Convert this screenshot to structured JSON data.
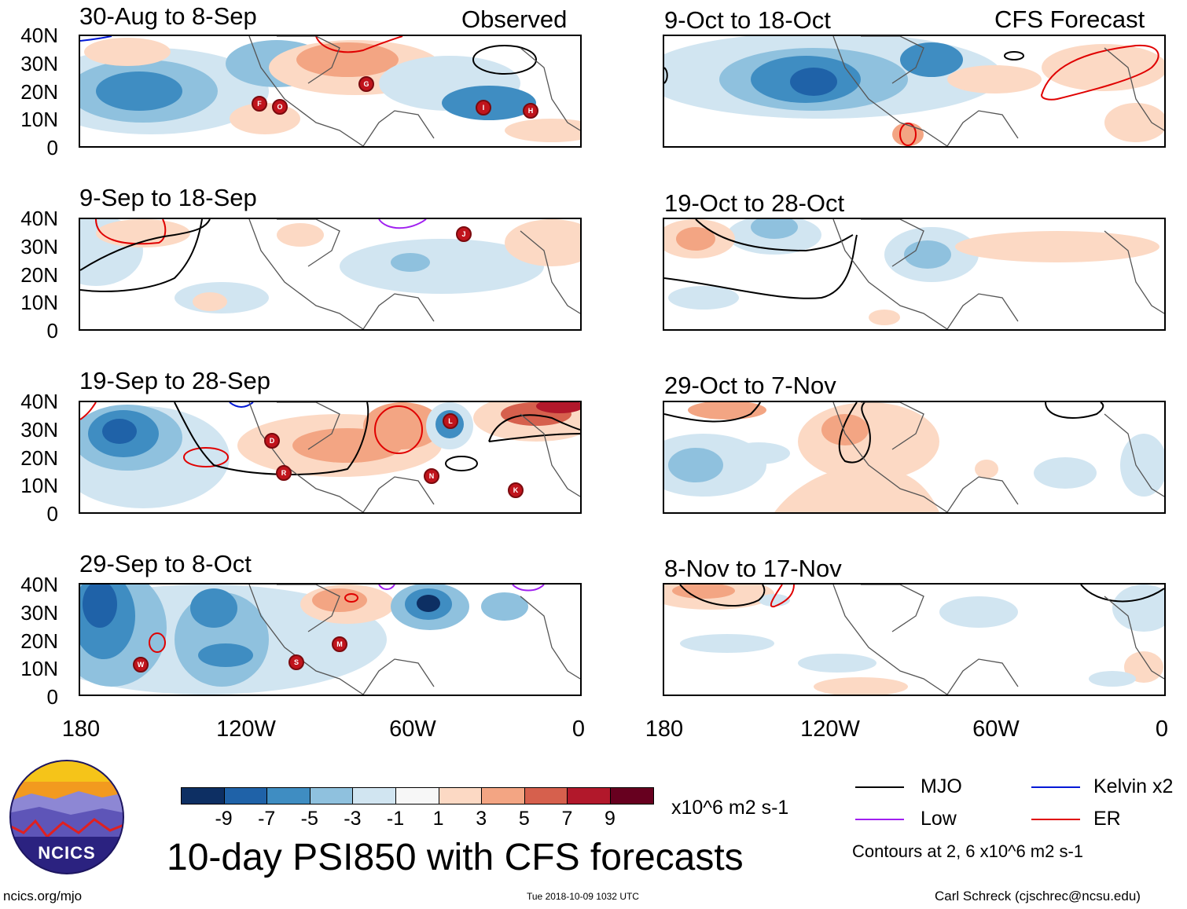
{
  "title": "10-day PSI850 with CFS forecasts",
  "observed_label": "Observed",
  "forecast_label": "CFS Forecast",
  "lat_labels": [
    "40N",
    "30N",
    "20N",
    "10N",
    "0"
  ],
  "lon_labels": [
    "180",
    "120W",
    "60W",
    "0"
  ],
  "panels": {
    "observed": [
      {
        "title": "30-Aug to 8-Sep",
        "storms": [
          "F",
          "O",
          "G",
          "I",
          "H"
        ]
      },
      {
        "title": "9-Sep to 18-Sep",
        "storms": [
          "J"
        ]
      },
      {
        "title": "19-Sep to 28-Sep",
        "storms": [
          "D",
          "R",
          "L",
          "N",
          "K"
        ]
      },
      {
        "title": "29-Sep to 8-Oct",
        "storms": [
          "W",
          "S",
          "M"
        ]
      }
    ],
    "forecast": [
      {
        "title": "9-Oct to 18-Oct"
      },
      {
        "title": "19-Oct to 28-Oct"
      },
      {
        "title": "29-Oct to 7-Nov"
      },
      {
        "title": "8-Nov to 17-Nov"
      }
    ]
  },
  "colorbar": {
    "ticks": [
      "-9",
      "-7",
      "-5",
      "-3",
      "-1",
      "1",
      "3",
      "5",
      "7",
      "9"
    ],
    "colors": [
      "#0d2f63",
      "#1f62a8",
      "#3f8dc2",
      "#8fc1de",
      "#d1e5f1",
      "#f7f7f7",
      "#fcd9c4",
      "#f3a583",
      "#d6604d",
      "#b2182b",
      "#67001f"
    ],
    "units": "x10^6 m2 s-1"
  },
  "legend": {
    "items": [
      {
        "label": "MJO",
        "color": "#000000"
      },
      {
        "label": "Kelvin x2",
        "color": "#0018d6"
      },
      {
        "label": "Low",
        "color": "#a020f0"
      },
      {
        "label": "ER",
        "color": "#e00000"
      }
    ],
    "note": "Contours at 2, 6 x10^6 m2 s-1"
  },
  "logo": {
    "text": "NCICS"
  },
  "footer": {
    "left": "ncics.org/mjo",
    "center": "Tue 2018-10-09 1032 UTC",
    "right": "Carl Schreck (cjschrec@ncsu.edu)"
  }
}
